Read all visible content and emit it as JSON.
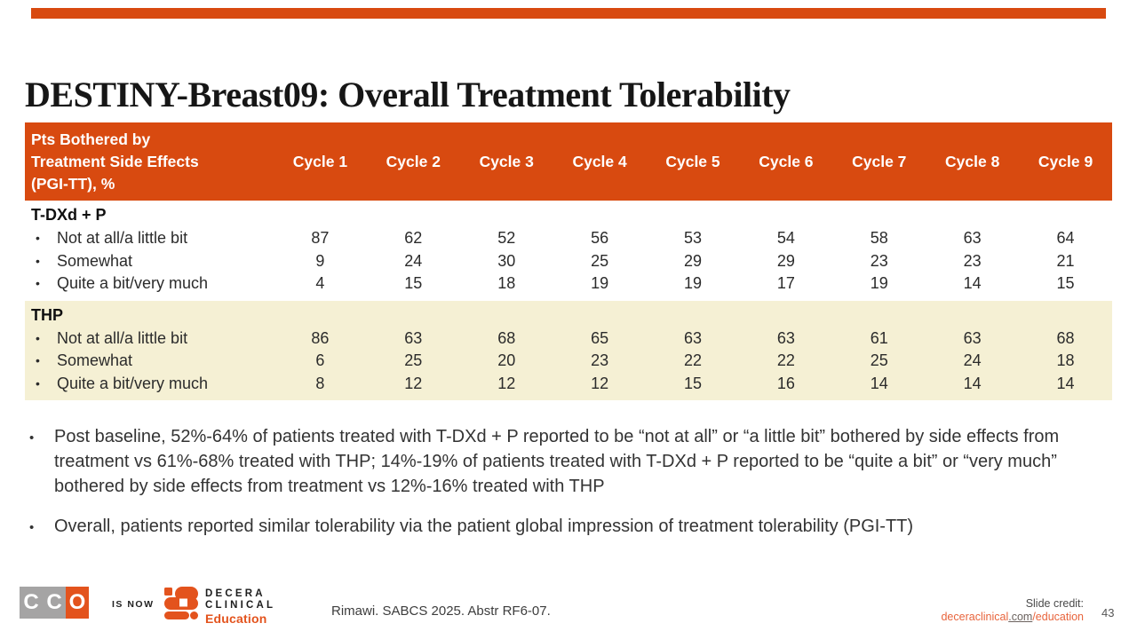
{
  "colors": {
    "brand_orange": "#D84A10",
    "logo_orange": "#E3531D",
    "link_orange": "#E8643C",
    "cream": "#F5F0D4",
    "gray_box": "#A5A4A4"
  },
  "slide": {
    "title": "DESTINY-Breast09: Overall Treatment Tolerability"
  },
  "table": {
    "header": {
      "row_label": "Pts Bothered by\nTreatment Side Effects\n(PGI-TT), %",
      "columns": [
        "Cycle 1",
        "Cycle 2",
        "Cycle 3",
        "Cycle 4",
        "Cycle 5",
        "Cycle 6",
        "Cycle 7",
        "Cycle 8",
        "Cycle 9"
      ]
    },
    "groups": [
      {
        "name": "T-DXd + P",
        "rows": [
          {
            "label": "Not at all/a little bit",
            "values": [
              87,
              62,
              52,
              56,
              53,
              54,
              58,
              63,
              64
            ]
          },
          {
            "label": "Somewhat",
            "values": [
              9,
              24,
              30,
              25,
              29,
              29,
              23,
              23,
              21
            ]
          },
          {
            "label": "Quite a bit/very much",
            "values": [
              4,
              15,
              18,
              19,
              19,
              17,
              19,
              14,
              15
            ]
          }
        ]
      },
      {
        "name": "THP",
        "rows": [
          {
            "label": "Not at all/a little bit",
            "values": [
              86,
              63,
              68,
              65,
              63,
              63,
              61,
              63,
              68
            ]
          },
          {
            "label": "Somewhat",
            "values": [
              6,
              25,
              20,
              23,
              22,
              22,
              25,
              24,
              18
            ]
          },
          {
            "label": "Quite a bit/very much",
            "values": [
              8,
              12,
              12,
              12,
              15,
              16,
              14,
              14,
              14
            ]
          }
        ]
      }
    ]
  },
  "bullets": [
    "Post baseline, 52%-64% of patients treated with T-DXd + P reported to be “not at all” or “a little bit” bothered by side effects from treatment vs 61%-68% treated with THP; 14%-19% of patients treated with T-DXd + P reported to be “quite a bit” or “very much” bothered by side effects from treatment vs 12%-16% treated with THP",
    "Overall, patients reported similar tolerability via the patient global impression of treatment tolerability (PGI-TT)"
  ],
  "footer": {
    "cco_letters": [
      "C",
      "C",
      "O"
    ],
    "is_now": "IS NOW",
    "decera_line1": "DECERA",
    "decera_line2": "CLINICAL",
    "decera_line3": "Education",
    "reference": "Rimawi. SABCS 2025. Abstr RF6-07.",
    "slide_credit_label": "Slide credit:",
    "slide_credit_link_parts": {
      "pre": "deceraclinical",
      "mid": ".com",
      "post": "/education"
    },
    "page_number": "43"
  }
}
